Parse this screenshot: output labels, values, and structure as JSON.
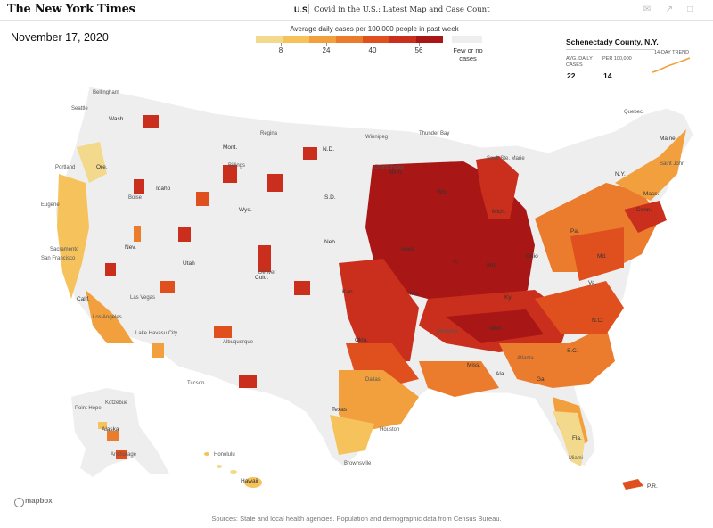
{
  "header": {
    "logo": "The New York Times",
    "section": "U.S.",
    "headline": "Covid in the U.S.: Latest Map and Case Count"
  },
  "date": "November 17, 2020",
  "legend": {
    "title": "Average daily cases per 100,000 people in past week",
    "ticks": [
      "8",
      "24",
      "40",
      "56"
    ],
    "no_data": "Few or no cases",
    "colors": [
      "#f3d98b",
      "#f6c25b",
      "#f2a03e",
      "#ec7c2d",
      "#e0501f",
      "#c92f1c",
      "#a81715"
    ]
  },
  "county_panel": {
    "name": "Schenectady County, N.Y.",
    "col1_header": "AVG. DAILY CASES",
    "col2_header": "PER 100,000",
    "trend_header": "14-DAY TREND",
    "avg_daily_cases": "22",
    "per_100k": "14",
    "trend_color": "#f2a03e"
  },
  "map": {
    "colors": {
      "land": "#eeeeee",
      "dark_red": "#a81715",
      "red": "#c92f1c",
      "orange_red": "#e0501f",
      "orange": "#ec7c2d",
      "light_orange": "#f2a03e",
      "yellow": "#f6c25b",
      "pale": "#f3d98b"
    },
    "state_labels": [
      "Wash.",
      "Ore.",
      "Calif.",
      "Nev.",
      "Idaho",
      "Mont.",
      "Wyo.",
      "Utah",
      "Colo.",
      "N.D.",
      "S.D.",
      "Neb.",
      "Kan.",
      "Okla.",
      "Texas",
      "Minn.",
      "Iowa",
      "Mo.",
      "Wis.",
      "Ill.",
      "Mich.",
      "Ind.",
      "Ohio",
      "Ky.",
      "Tenn.",
      "Miss.",
      "Ala.",
      "Ga.",
      "Fla.",
      "S.C.",
      "N.C.",
      "Va.",
      "Md.",
      "Pa.",
      "N.Y.",
      "Maine",
      "Mass.",
      "Conn.",
      "Alaska",
      "Hawaii",
      "P.R."
    ],
    "place_labels": [
      "Bellingham",
      "Seattle",
      "Portland",
      "Eugene",
      "Sacramento",
      "San Francisco",
      "Los Angeles",
      "Las Vegas",
      "Lake Havasu City",
      "Boise",
      "Billings",
      "Regina",
      "Winnipeg",
      "Thunder Bay",
      "Sault Ste. Marie",
      "Quebec",
      "Saint John",
      "Denver",
      "Albuquerque",
      "Tucson",
      "Dallas",
      "Houston",
      "Brownsville",
      "Memphis",
      "Atlanta",
      "Miami",
      "Grand Forks",
      "Kotzebue",
      "Point Hope",
      "Anchorage",
      "Honolulu"
    ]
  },
  "mapbox": "mapbox",
  "source": "Sources: State and local health agencies. Population and demographic data from Census Bureau."
}
